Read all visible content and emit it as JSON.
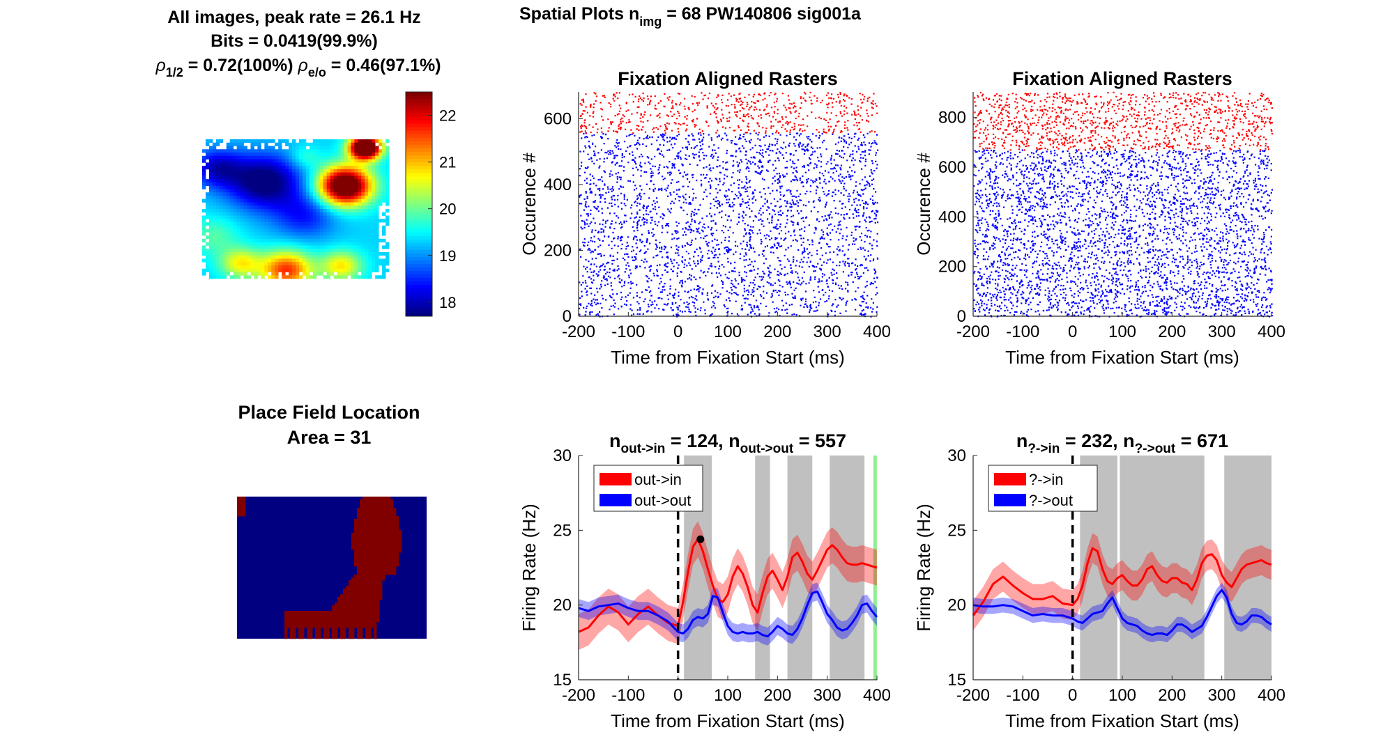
{
  "header": {
    "main": "Spatial Plots n",
    "sub": "img",
    "rest": " = 68  PW140806 sig001a"
  },
  "heatmap_panel": {
    "line1": "All images, peak rate = 26.1 Hz",
    "line2": "Bits = 0.0419(99.9%)",
    "line3": {
      "rho1": "ρ",
      "sub1": "1/2",
      "val1": " = 0.72(100%) ",
      "rho2": "ρ",
      "sub2": "e/o",
      "val2": " = 0.46(97.1%)"
    },
    "colorbar_ticks": [
      "22",
      "21",
      "20",
      "19",
      "18"
    ],
    "colorbar_range": [
      17.7,
      22.5
    ]
  },
  "placefield_panel": {
    "line1": "Place Field Location",
    "line2": "Area = 31"
  },
  "colors": {
    "in": "#ff0000",
    "out": "#0000ff",
    "shade": "#c0c0c0",
    "marker": "#90ee90",
    "dark_red": "#800000",
    "dark_blue": "#000080"
  },
  "chart_data": [
    {
      "type": "scatter",
      "id": "raster_left",
      "title": "Fixation Aligned Rasters",
      "xlabel": "Time from Fixation Start (ms)",
      "ylabel": "Occurence #",
      "xlim": [
        -200,
        400
      ],
      "ylim": [
        0,
        681
      ],
      "xticks": [
        "-200",
        "-100",
        "0",
        "100",
        "200",
        "300",
        "400"
      ],
      "yticks": [
        "0",
        "200",
        "400",
        "600"
      ],
      "series": [
        {
          "name": "out->out",
          "trials": [
            1,
            557
          ],
          "color": "#0000ff"
        },
        {
          "name": "out->in",
          "trials": [
            558,
            681
          ],
          "color": "#ff0000"
        }
      ]
    },
    {
      "type": "scatter",
      "id": "raster_right",
      "title": "Fixation Aligned Rasters",
      "xlabel": "Time from Fixation Start (ms)",
      "ylabel": "Occurence #",
      "xlim": [
        -200,
        400
      ],
      "ylim": [
        0,
        903
      ],
      "xticks": [
        "-200",
        "-100",
        "0",
        "100",
        "200",
        "300",
        "400"
      ],
      "yticks": [
        "0",
        "200",
        "400",
        "600",
        "800"
      ],
      "series": [
        {
          "name": "?->out",
          "trials": [
            1,
            671
          ],
          "color": "#0000ff"
        },
        {
          "name": "?->in",
          "trials": [
            672,
            903
          ],
          "color": "#ff0000"
        }
      ]
    },
    {
      "type": "line",
      "id": "rate_left",
      "title": {
        "n1": "n",
        "s1": "out->in",
        "v1": " = 124, ",
        "n2": "n",
        "s2": "out->out",
        "v2": " = 557"
      },
      "xlabel": "Time from Fixation Start (ms)",
      "ylabel": "Firing Rate (Hz)",
      "xlim": [
        -200,
        400
      ],
      "ylim": [
        15,
        30
      ],
      "xticks": [
        "-200",
        "-100",
        "0",
        "100",
        "200",
        "300",
        "400"
      ],
      "yticks": [
        "15",
        "20",
        "25",
        "30"
      ],
      "shaded": [
        [
          12,
          68
        ],
        [
          155,
          185
        ],
        [
          220,
          270
        ],
        [
          305,
          375
        ]
      ],
      "marker_band": [
        390,
        400
      ],
      "peak": [
        45,
        24.4
      ],
      "x": [
        -200,
        -180,
        -160,
        -140,
        -120,
        -100,
        -80,
        -60,
        -40,
        -20,
        0,
        10,
        20,
        30,
        40,
        50,
        60,
        70,
        80,
        90,
        100,
        110,
        120,
        130,
        140,
        150,
        160,
        170,
        180,
        190,
        200,
        210,
        220,
        230,
        240,
        250,
        260,
        270,
        280,
        290,
        300,
        310,
        320,
        330,
        340,
        350,
        360,
        370,
        380,
        390,
        400
      ],
      "series": [
        {
          "name": "out->in",
          "color": "#ff0000",
          "values": [
            18.2,
            18.5,
            19.3,
            19.9,
            19.5,
            18.7,
            19.4,
            19.9,
            19.3,
            18.8,
            18.6,
            20.2,
            22.2,
            23.9,
            24.4,
            23.6,
            22.4,
            21.3,
            20.4,
            20.2,
            20.7,
            21.9,
            22.6,
            22.1,
            21.2,
            20.0,
            19.5,
            20.8,
            21.9,
            22.3,
            21.7,
            21.0,
            21.9,
            23.2,
            23.5,
            22.9,
            22.1,
            21.7,
            22.3,
            23.0,
            23.7,
            24.0,
            23.7,
            23.2,
            22.8,
            22.7,
            22.7,
            22.8,
            22.7,
            22.6,
            22.5
          ],
          "band": 1.2
        },
        {
          "name": "out->out",
          "color": "#0000ff",
          "values": [
            19.8,
            19.6,
            19.9,
            20.0,
            20.1,
            19.8,
            19.6,
            19.6,
            19.3,
            18.9,
            18.2,
            18.1,
            18.4,
            19.0,
            19.2,
            19.1,
            19.4,
            20.6,
            20.5,
            19.5,
            18.6,
            18.2,
            18.1,
            18.2,
            18.1,
            18.1,
            18.2,
            18.0,
            17.9,
            18.2,
            18.6,
            18.4,
            18.1,
            18.0,
            18.4,
            19.1,
            20.0,
            20.8,
            20.9,
            20.2,
            19.4,
            19.0,
            18.5,
            18.3,
            18.4,
            18.8,
            19.3,
            20.0,
            20.1,
            19.6,
            19.2
          ],
          "band": 0.6
        }
      ],
      "legend": "top-left"
    },
    {
      "type": "line",
      "id": "rate_right",
      "title": {
        "n1": "n",
        "s1": "?->in",
        "v1": " = 232, ",
        "n2": "n",
        "s2": "?->out",
        "v2": " = 671"
      },
      "xlabel": "Time from Fixation Start (ms)",
      "ylabel": "Firing Rate (Hz)",
      "xlim": [
        -200,
        400
      ],
      "ylim": [
        15,
        30
      ],
      "xticks": [
        "-200",
        "-100",
        "0",
        "100",
        "200",
        "300",
        "400"
      ],
      "yticks": [
        "15",
        "20",
        "25",
        "30"
      ],
      "shaded": [
        [
          15,
          90
        ],
        [
          95,
          265
        ],
        [
          305,
          400
        ]
      ],
      "x": [
        -200,
        -180,
        -160,
        -140,
        -120,
        -100,
        -80,
        -60,
        -40,
        -20,
        0,
        10,
        20,
        30,
        40,
        50,
        60,
        70,
        80,
        90,
        100,
        110,
        120,
        130,
        140,
        150,
        160,
        170,
        180,
        190,
        200,
        210,
        220,
        230,
        240,
        250,
        260,
        270,
        280,
        290,
        300,
        310,
        320,
        330,
        340,
        350,
        360,
        370,
        380,
        390,
        400
      ],
      "series": [
        {
          "name": "?->in",
          "color": "#ff0000",
          "values": [
            19.3,
            20.2,
            21.4,
            21.9,
            21.3,
            20.8,
            20.4,
            20.4,
            20.6,
            20.1,
            20.0,
            20.4,
            21.3,
            22.8,
            23.8,
            23.6,
            22.4,
            21.6,
            21.4,
            21.8,
            22.0,
            21.6,
            21.3,
            21.3,
            21.7,
            22.4,
            22.6,
            22.0,
            21.6,
            21.5,
            21.8,
            21.8,
            21.5,
            21.4,
            21.0,
            21.7,
            22.8,
            23.3,
            23.4,
            23.0,
            22.0,
            21.5,
            21.2,
            21.8,
            22.4,
            22.7,
            22.8,
            22.9,
            23.0,
            22.8,
            22.7
          ],
          "band": 1.0
        },
        {
          "name": "?->out",
          "color": "#0000ff",
          "values": [
            20.0,
            19.9,
            19.9,
            20.0,
            19.9,
            19.6,
            19.3,
            19.4,
            19.3,
            19.3,
            19.1,
            18.9,
            18.8,
            19.1,
            19.4,
            19.5,
            19.6,
            20.1,
            20.5,
            19.8,
            19.1,
            18.8,
            18.7,
            18.6,
            18.3,
            18.1,
            18.0,
            18.1,
            18.1,
            18.0,
            18.3,
            18.7,
            18.7,
            18.5,
            18.2,
            18.4,
            18.6,
            19.2,
            19.9,
            20.6,
            21.0,
            20.5,
            19.4,
            18.8,
            18.7,
            18.9,
            19.3,
            19.3,
            19.2,
            18.9,
            18.7
          ],
          "band": 0.5
        }
      ],
      "legend": "top-left"
    }
  ]
}
